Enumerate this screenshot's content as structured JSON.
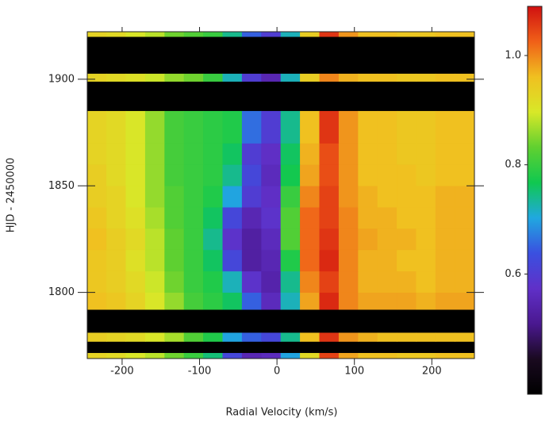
{
  "chart_data": {
    "type": "heatmap",
    "xlabel": "Radial Velocity (km/s)",
    "ylabel": "HJD - 2450000",
    "xlim": [
      -245,
      255
    ],
    "ylim": [
      1769,
      1922.3
    ],
    "xticks": [
      -200,
      -100,
      0,
      100,
      200
    ],
    "yticks": [
      1800,
      1850,
      1900
    ],
    "x_edges": [
      -245,
      -220,
      -195,
      -170,
      -145,
      -120,
      -95,
      -70,
      -45,
      -20,
      5,
      30,
      55,
      80,
      105,
      130,
      155,
      180,
      205,
      230,
      255
    ],
    "y_edges": [
      1769,
      1771.5,
      1777,
      1781,
      1792,
      1800,
      1810,
      1820,
      1830,
      1840,
      1850,
      1860,
      1870,
      1885,
      1899,
      1902.5,
      1920,
      1922.3
    ],
    "values": [
      [
        0.93,
        0.92,
        0.9,
        0.88,
        0.84,
        0.8,
        0.75,
        0.62,
        0.55,
        0.56,
        0.7,
        0.92,
        1.05,
        0.98,
        0.96,
        0.96,
        0.95,
        0.95,
        0.96,
        0.96
      ],
      null,
      [
        0.94,
        0.93,
        0.92,
        0.9,
        0.87,
        0.82,
        0.78,
        0.7,
        0.65,
        0.62,
        0.74,
        0.96,
        1.06,
        0.99,
        0.97,
        0.96,
        0.96,
        0.96,
        0.96,
        0.96
      ],
      null,
      [
        0.96,
        0.95,
        0.93,
        0.9,
        0.86,
        0.81,
        0.79,
        0.76,
        0.65,
        0.56,
        0.72,
        0.98,
        1.07,
        1.0,
        0.98,
        0.98,
        0.98,
        0.97,
        0.98,
        0.98
      ],
      [
        0.95,
        0.94,
        0.92,
        0.89,
        0.84,
        0.8,
        0.78,
        0.72,
        0.58,
        0.54,
        0.74,
        1.0,
        1.05,
        1.0,
        0.97,
        0.97,
        0.97,
        0.96,
        0.97,
        0.97
      ],
      [
        0.95,
        0.94,
        0.91,
        0.88,
        0.83,
        0.8,
        0.76,
        0.62,
        0.53,
        0.55,
        0.78,
        1.02,
        1.07,
        1.0,
        0.97,
        0.97,
        0.96,
        0.96,
        0.97,
        0.97
      ],
      [
        0.96,
        0.94,
        0.92,
        0.88,
        0.83,
        0.8,
        0.74,
        0.58,
        0.53,
        0.56,
        0.82,
        1.02,
        1.06,
        1.0,
        0.98,
        0.97,
        0.97,
        0.96,
        0.97,
        0.97
      ],
      [
        0.95,
        0.93,
        0.91,
        0.87,
        0.82,
        0.8,
        0.76,
        0.62,
        0.55,
        0.58,
        0.82,
        1.02,
        1.05,
        1.0,
        0.97,
        0.97,
        0.96,
        0.96,
        0.97,
        0.97
      ],
      [
        0.94,
        0.93,
        0.9,
        0.86,
        0.82,
        0.8,
        0.78,
        0.7,
        0.6,
        0.57,
        0.8,
        1.0,
        1.05,
        0.99,
        0.97,
        0.96,
        0.96,
        0.96,
        0.97,
        0.97
      ],
      [
        0.94,
        0.92,
        0.9,
        0.86,
        0.81,
        0.8,
        0.79,
        0.74,
        0.62,
        0.56,
        0.77,
        0.98,
        1.04,
        0.99,
        0.96,
        0.96,
        0.96,
        0.95,
        0.96,
        0.96
      ],
      [
        0.93,
        0.92,
        0.9,
        0.86,
        0.81,
        0.8,
        0.79,
        0.76,
        0.6,
        0.57,
        0.76,
        0.97,
        1.04,
        0.99,
        0.96,
        0.96,
        0.95,
        0.95,
        0.96,
        0.96
      ],
      [
        0.93,
        0.92,
        0.9,
        0.86,
        0.81,
        0.8,
        0.79,
        0.78,
        0.66,
        0.6,
        0.74,
        0.96,
        1.06,
        0.99,
        0.96,
        0.96,
        0.95,
        0.95,
        0.96,
        0.96
      ],
      null,
      [
        0.93,
        0.92,
        0.91,
        0.89,
        0.86,
        0.84,
        0.8,
        0.72,
        0.6,
        0.55,
        0.72,
        0.94,
        1.0,
        0.97,
        0.96,
        0.96,
        0.95,
        0.95,
        0.96,
        0.96
      ],
      null,
      [
        0.93,
        0.92,
        0.9,
        0.88,
        0.84,
        0.82,
        0.8,
        0.74,
        0.65,
        0.6,
        0.72,
        0.94,
        1.06,
        0.99,
        0.96,
        0.96,
        0.95,
        0.95,
        0.96,
        0.96
      ]
    ],
    "clim": [
      0.38,
      1.09
    ],
    "colorscale": [
      "#000000",
      "#1a0a20",
      "#4a1890",
      "#6030c8",
      "#3a50e0",
      "#20a8e0",
      "#10c850",
      "#60d030",
      "#d8e828",
      "#f0c020",
      "#f06018",
      "#d01010"
    ],
    "missing_color": "#000000",
    "colorbar_ticks": [
      0.6,
      0.8,
      {
        "value": 1,
        "label": "1.0"
      }
    ]
  }
}
